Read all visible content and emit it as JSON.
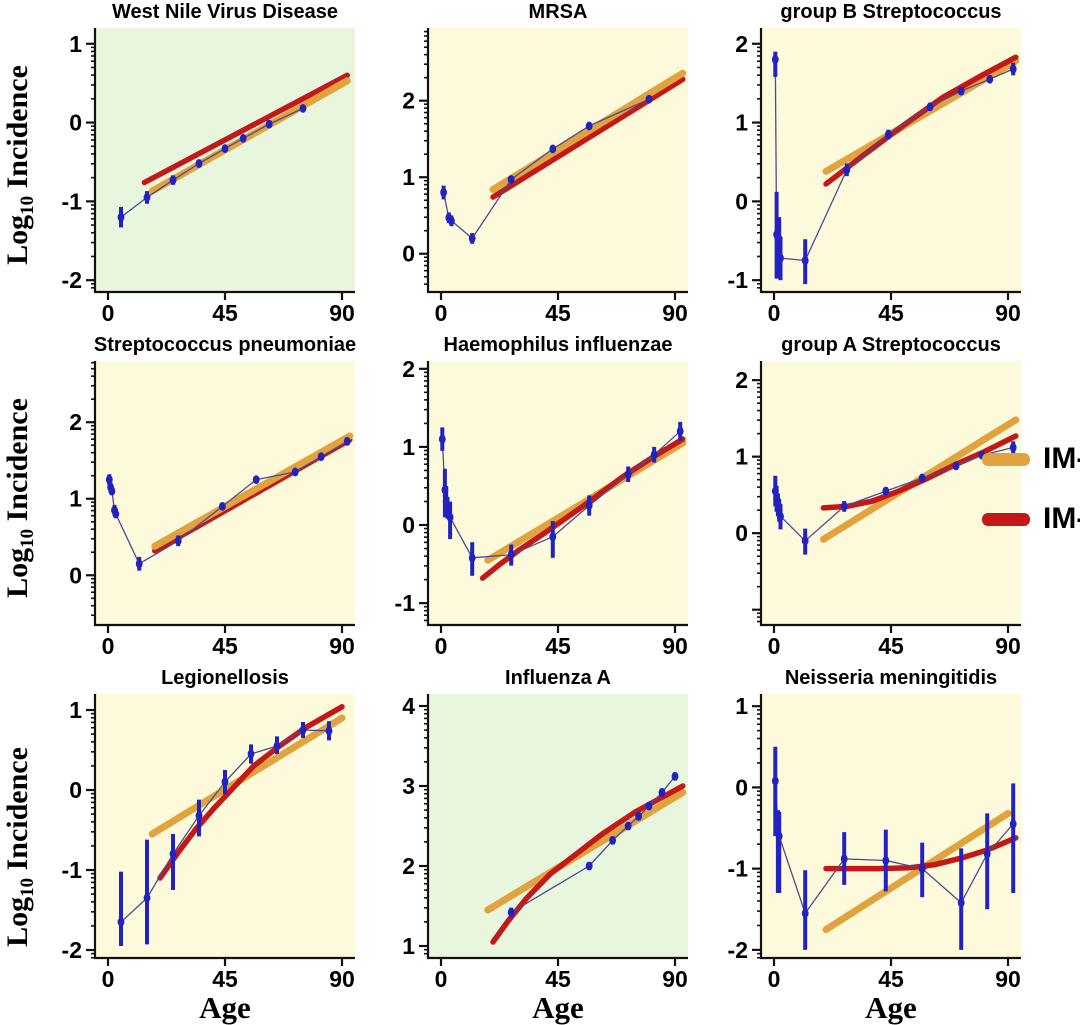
{
  "figure": {
    "y_axis_label": {
      "prefix": "Log",
      "sub": "10",
      "rest": "Incidence"
    },
    "x_axis_label": "Age",
    "legend": {
      "items": [
        {
          "label": "IM-I",
          "color": "#E0A33E"
        },
        {
          "label": "IM-II",
          "color": "#C41818"
        }
      ]
    },
    "colors": {
      "im1": "#E0A33E",
      "im2": "#C41818",
      "data_marker": "#2222C0",
      "data_line": "#4A4A99",
      "bg_yellow": "#FDFADB",
      "bg_green": "#E7F6DC",
      "axis": "#111111"
    }
  },
  "chart_data": [
    {
      "type": "scatter",
      "title": "West Nile Virus Disease",
      "bg": "green",
      "xlim": [
        -5,
        95
      ],
      "xticks": [
        0,
        45,
        90
      ],
      "ylim": [
        -2.15,
        1.2
      ],
      "yticks": [
        1,
        0,
        -1,
        -2
      ],
      "red_on_top": false,
      "points": [
        {
          "x": 5,
          "y": -1.2,
          "lo": -1.33,
          "hi": -1.07
        },
        {
          "x": 15,
          "y": -0.95,
          "lo": -1.03,
          "hi": -0.87
        },
        {
          "x": 25,
          "y": -0.73,
          "lo": -0.79,
          "hi": -0.67
        },
        {
          "x": 35,
          "y": -0.52,
          "lo": -0.57,
          "hi": -0.47
        },
        {
          "x": 45,
          "y": -0.33,
          "lo": -0.37,
          "hi": -0.29
        },
        {
          "x": 52,
          "y": -0.2,
          "lo": -0.24,
          "hi": -0.16
        },
        {
          "x": 62,
          "y": -0.02,
          "lo": -0.05,
          "hi": 0.01
        },
        {
          "x": 75,
          "y": 0.18,
          "lo": 0.15,
          "hi": 0.21
        }
      ],
      "im1": [
        [
          17,
          -0.87
        ],
        [
          92,
          0.53
        ]
      ],
      "im2": [
        [
          14,
          -0.76
        ],
        [
          92,
          0.6
        ]
      ]
    },
    {
      "type": "scatter",
      "title": "MRSA",
      "bg": "yellow",
      "xlim": [
        -5,
        95
      ],
      "xticks": [
        0,
        45,
        90
      ],
      "ylim": [
        -0.5,
        2.95
      ],
      "yticks": [
        2,
        1,
        0
      ],
      "red_on_top": false,
      "points": [
        {
          "x": 1,
          "y": 0.8,
          "lo": 0.71,
          "hi": 0.89
        },
        {
          "x": 3,
          "y": 0.47,
          "lo": 0.4,
          "hi": 0.54
        },
        {
          "x": 4,
          "y": 0.43,
          "lo": 0.36,
          "hi": 0.5
        },
        {
          "x": 12,
          "y": 0.2,
          "lo": 0.13,
          "hi": 0.27
        },
        {
          "x": 27,
          "y": 0.97,
          "lo": 0.93,
          "hi": 1.01
        },
        {
          "x": 43,
          "y": 1.37,
          "lo": 1.34,
          "hi": 1.4
        },
        {
          "x": 57,
          "y": 1.67,
          "lo": 1.64,
          "hi": 1.7
        },
        {
          "x": 80,
          "y": 2.02,
          "lo": 1.99,
          "hi": 2.05
        }
      ],
      "im1": [
        [
          20,
          0.84
        ],
        [
          93,
          2.36
        ]
      ],
      "im2": [
        [
          20,
          0.74
        ],
        [
          93,
          2.28
        ]
      ]
    },
    {
      "type": "scatter",
      "title": "group B Streptococcus",
      "bg": "yellow",
      "xlim": [
        -5,
        95
      ],
      "xticks": [
        0,
        45,
        90
      ],
      "ylim": [
        -1.15,
        2.2
      ],
      "yticks": [
        2,
        1,
        0,
        -1
      ],
      "red_on_top": true,
      "points": [
        {
          "x": 0.5,
          "y": 1.8,
          "lo": 1.58,
          "hi": 1.9
        },
        {
          "x": 1,
          "y": -0.42,
          "lo": -0.98,
          "hi": 0.12
        },
        {
          "x": 2,
          "y": -0.48,
          "lo": -0.78,
          "hi": -0.2
        },
        {
          "x": 2.5,
          "y": -0.72,
          "lo": -1.0,
          "hi": -0.45
        },
        {
          "x": 12,
          "y": -0.75,
          "lo": -1.05,
          "hi": -0.48
        },
        {
          "x": 28,
          "y": 0.4,
          "lo": 0.32,
          "hi": 0.48
        },
        {
          "x": 44,
          "y": 0.85,
          "lo": 0.79,
          "hi": 0.91
        },
        {
          "x": 60,
          "y": 1.2,
          "lo": 1.15,
          "hi": 1.25
        },
        {
          "x": 72,
          "y": 1.4,
          "lo": 1.35,
          "hi": 1.45
        },
        {
          "x": 83,
          "y": 1.55,
          "lo": 1.5,
          "hi": 1.6
        },
        {
          "x": 92,
          "y": 1.68,
          "lo": 1.6,
          "hi": 1.76
        }
      ],
      "im1": [
        [
          20,
          0.38
        ],
        [
          93,
          1.78
        ]
      ],
      "im2": [
        [
          20,
          0.22
        ],
        [
          35,
          0.6
        ],
        [
          50,
          0.97
        ],
        [
          65,
          1.32
        ],
        [
          80,
          1.6
        ],
        [
          93,
          1.83
        ]
      ]
    },
    {
      "type": "scatter",
      "title": "Streptococcus pneumoniae",
      "bg": "yellow",
      "xlim": [
        -5,
        95
      ],
      "xticks": [
        0,
        45,
        90
      ],
      "ylim": [
        -0.65,
        2.8
      ],
      "yticks": [
        2,
        1,
        0
      ],
      "red_on_top": false,
      "points": [
        {
          "x": 0.5,
          "y": 1.25,
          "lo": 1.18,
          "hi": 1.32
        },
        {
          "x": 1,
          "y": 1.15,
          "lo": 1.09,
          "hi": 1.21
        },
        {
          "x": 1.5,
          "y": 1.1,
          "lo": 1.05,
          "hi": 1.15
        },
        {
          "x": 2.5,
          "y": 0.85,
          "lo": 0.78,
          "hi": 0.92
        },
        {
          "x": 3,
          "y": 0.8,
          "lo": 0.75,
          "hi": 0.85
        },
        {
          "x": 12,
          "y": 0.15,
          "lo": 0.06,
          "hi": 0.24
        },
        {
          "x": 27,
          "y": 0.45,
          "lo": 0.38,
          "hi": 0.52
        },
        {
          "x": 44,
          "y": 0.9,
          "lo": 0.86,
          "hi": 0.94
        },
        {
          "x": 57,
          "y": 1.25,
          "lo": 1.22,
          "hi": 1.28
        },
        {
          "x": 72,
          "y": 1.35,
          "lo": 1.32,
          "hi": 1.38
        },
        {
          "x": 82,
          "y": 1.55,
          "lo": 1.52,
          "hi": 1.58
        },
        {
          "x": 92,
          "y": 1.75,
          "lo": 1.7,
          "hi": 1.8
        }
      ],
      "im1": [
        [
          18,
          0.38
        ],
        [
          93,
          1.82
        ]
      ],
      "im2": [
        [
          18,
          0.32
        ],
        [
          93,
          1.77
        ]
      ]
    },
    {
      "type": "scatter",
      "title": "Haemophilus influenzae",
      "bg": "yellow",
      "xlim": [
        -5,
        95
      ],
      "xticks": [
        0,
        45,
        90
      ],
      "ylim": [
        -1.28,
        2.1
      ],
      "yticks": [
        2,
        1,
        0,
        -1
      ],
      "red_on_top": true,
      "points": [
        {
          "x": 0.5,
          "y": 1.1,
          "lo": 0.95,
          "hi": 1.25
        },
        {
          "x": 1.5,
          "y": 0.45,
          "lo": 0.1,
          "hi": 0.72
        },
        {
          "x": 2,
          "y": 0.3,
          "lo": 0.1,
          "hi": 0.5
        },
        {
          "x": 2.5,
          "y": 0.22,
          "lo": 0.08,
          "hi": 0.36
        },
        {
          "x": 3.5,
          "y": 0.1,
          "lo": -0.18,
          "hi": 0.3
        },
        {
          "x": 12,
          "y": -0.42,
          "lo": -0.65,
          "hi": -0.22
        },
        {
          "x": 27,
          "y": -0.38,
          "lo": -0.52,
          "hi": -0.25
        },
        {
          "x": 43,
          "y": -0.15,
          "lo": -0.42,
          "hi": 0.05
        },
        {
          "x": 57,
          "y": 0.25,
          "lo": 0.12,
          "hi": 0.38
        },
        {
          "x": 72,
          "y": 0.65,
          "lo": 0.55,
          "hi": 0.75
        },
        {
          "x": 82,
          "y": 0.9,
          "lo": 0.8,
          "hi": 1.0
        },
        {
          "x": 92,
          "y": 1.2,
          "lo": 1.08,
          "hi": 1.32
        }
      ],
      "im1": [
        [
          18,
          -0.45
        ],
        [
          93,
          1.05
        ]
      ],
      "im2": [
        [
          16,
          -0.68
        ],
        [
          22,
          -0.52
        ],
        [
          30,
          -0.32
        ],
        [
          40,
          -0.1
        ],
        [
          55,
          0.25
        ],
        [
          70,
          0.62
        ],
        [
          82,
          0.88
        ],
        [
          93,
          1.1
        ]
      ]
    },
    {
      "type": "scatter",
      "title": "group A Streptococcus",
      "bg": "yellow",
      "xlim": [
        -5,
        95
      ],
      "xticks": [
        0,
        45,
        90
      ],
      "ylim": [
        -1.2,
        2.25
      ],
      "yticks": [
        2,
        1,
        0
      ],
      "red_on_top": true,
      "points": [
        {
          "x": 0.5,
          "y": 0.55,
          "lo": 0.35,
          "hi": 0.75
        },
        {
          "x": 1,
          "y": 0.45,
          "lo": 0.28,
          "hi": 0.62
        },
        {
          "x": 1.5,
          "y": 0.38,
          "lo": 0.22,
          "hi": 0.52
        },
        {
          "x": 2,
          "y": 0.3,
          "lo": 0.15,
          "hi": 0.45
        },
        {
          "x": 2.5,
          "y": 0.22,
          "lo": 0.05,
          "hi": 0.38
        },
        {
          "x": 12,
          "y": -0.1,
          "lo": -0.28,
          "hi": 0.06
        },
        {
          "x": 27,
          "y": 0.35,
          "lo": 0.28,
          "hi": 0.42
        },
        {
          "x": 43,
          "y": 0.55,
          "lo": 0.5,
          "hi": 0.6
        },
        {
          "x": 57,
          "y": 0.72,
          "lo": 0.67,
          "hi": 0.77
        },
        {
          "x": 70,
          "y": 0.88,
          "lo": 0.83,
          "hi": 0.93
        },
        {
          "x": 80,
          "y": 1.02,
          "lo": 0.97,
          "hi": 1.07
        },
        {
          "x": 92,
          "y": 1.12,
          "lo": 1.04,
          "hi": 1.2
        }
      ],
      "im1": [
        [
          19,
          -0.08
        ],
        [
          93,
          1.48
        ]
      ],
      "im2": [
        [
          19,
          0.33
        ],
        [
          28,
          0.35
        ],
        [
          38,
          0.42
        ],
        [
          48,
          0.55
        ],
        [
          58,
          0.7
        ],
        [
          70,
          0.9
        ],
        [
          80,
          1.05
        ],
        [
          93,
          1.27
        ]
      ]
    },
    {
      "type": "scatter",
      "title": "Legionellosis",
      "bg": "yellow",
      "xlim": [
        -5,
        95
      ],
      "xticks": [
        0,
        45,
        90
      ],
      "ylim": [
        -2.1,
        1.2
      ],
      "yticks": [
        1,
        0,
        -1,
        -2
      ],
      "red_on_top": true,
      "points": [
        {
          "x": 5,
          "y": -1.65,
          "lo": -1.95,
          "hi": -1.02
        },
        {
          "x": 15,
          "y": -1.35,
          "lo": -1.93,
          "hi": -0.62
        },
        {
          "x": 25,
          "y": -0.8,
          "lo": -1.25,
          "hi": -0.55
        },
        {
          "x": 35,
          "y": -0.32,
          "lo": -0.58,
          "hi": -0.12
        },
        {
          "x": 45,
          "y": 0.1,
          "lo": -0.05,
          "hi": 0.25
        },
        {
          "x": 55,
          "y": 0.45,
          "lo": 0.33,
          "hi": 0.57
        },
        {
          "x": 65,
          "y": 0.55,
          "lo": 0.45,
          "hi": 0.67
        },
        {
          "x": 75,
          "y": 0.75,
          "lo": 0.65,
          "hi": 0.85
        },
        {
          "x": 85,
          "y": 0.74,
          "lo": 0.62,
          "hi": 0.86
        }
      ],
      "im1": [
        [
          17,
          -0.55
        ],
        [
          90,
          0.9
        ]
      ],
      "im2": [
        [
          20,
          -1.1
        ],
        [
          27,
          -0.78
        ],
        [
          34,
          -0.48
        ],
        [
          41,
          -0.22
        ],
        [
          48,
          0.02
        ],
        [
          56,
          0.3
        ],
        [
          66,
          0.55
        ],
        [
          76,
          0.78
        ],
        [
          90,
          1.04
        ]
      ]
    },
    {
      "type": "scatter",
      "title": "Influenza A",
      "bg": "green",
      "xlim": [
        -5,
        95
      ],
      "xticks": [
        0,
        45,
        90
      ],
      "ylim": [
        0.85,
        4.15
      ],
      "yticks": [
        4,
        3,
        2,
        1
      ],
      "red_on_top": true,
      "points": [
        {
          "x": 27,
          "y": 1.42,
          "lo": 1.36,
          "hi": 1.48
        },
        {
          "x": 57,
          "y": 2.0,
          "lo": 1.95,
          "hi": 2.05
        },
        {
          "x": 66,
          "y": 2.32,
          "lo": 2.27,
          "hi": 2.37
        },
        {
          "x": 72,
          "y": 2.5,
          "lo": 2.45,
          "hi": 2.55
        },
        {
          "x": 76,
          "y": 2.62,
          "lo": 2.57,
          "hi": 2.67
        },
        {
          "x": 80,
          "y": 2.75,
          "lo": 2.7,
          "hi": 2.8
        },
        {
          "x": 85,
          "y": 2.92,
          "lo": 2.87,
          "hi": 2.97
        },
        {
          "x": 90,
          "y": 3.12,
          "lo": 3.07,
          "hi": 3.17
        }
      ],
      "im1": [
        [
          18,
          1.45
        ],
        [
          93,
          2.92
        ]
      ],
      "im2": [
        [
          20,
          1.05
        ],
        [
          26,
          1.32
        ],
        [
          33,
          1.6
        ],
        [
          42,
          1.9
        ],
        [
          52,
          2.15
        ],
        [
          62,
          2.4
        ],
        [
          75,
          2.68
        ],
        [
          93,
          3.0
        ]
      ]
    },
    {
      "type": "scatter",
      "title": "Neisseria meningitidis",
      "bg": "yellow",
      "xlim": [
        -5,
        95
      ],
      "xticks": [
        0,
        45,
        90
      ],
      "ylim": [
        -2.1,
        1.15
      ],
      "yticks": [
        1,
        0,
        -1,
        -2
      ],
      "red_on_top": true,
      "points": [
        {
          "x": 0.5,
          "y": 0.08,
          "lo": -0.6,
          "hi": 0.5
        },
        {
          "x": 1.5,
          "y": -0.45,
          "lo": -1.3,
          "hi": -0.28
        },
        {
          "x": 2,
          "y": -0.6,
          "lo": -1.3,
          "hi": -0.3
        },
        {
          "x": 12,
          "y": -1.55,
          "lo": -2.0,
          "hi": -1.02
        },
        {
          "x": 27,
          "y": -0.88,
          "lo": -1.2,
          "hi": -0.55
        },
        {
          "x": 43,
          "y": -0.9,
          "lo": -1.28,
          "hi": -0.52
        },
        {
          "x": 57,
          "y": -1.0,
          "lo": -1.35,
          "hi": -0.68
        },
        {
          "x": 72,
          "y": -1.42,
          "lo": -2.0,
          "hi": -0.75
        },
        {
          "x": 82,
          "y": -0.82,
          "lo": -1.5,
          "hi": -0.32
        },
        {
          "x": 92,
          "y": -0.45,
          "lo": -1.3,
          "hi": 0.05
        }
      ],
      "im1": [
        [
          20,
          -1.75
        ],
        [
          90,
          -0.32
        ]
      ],
      "im2": [
        [
          20,
          -1.0
        ],
        [
          40,
          -1.0
        ],
        [
          52,
          -0.99
        ],
        [
          62,
          -0.95
        ],
        [
          72,
          -0.87
        ],
        [
          82,
          -0.77
        ],
        [
          93,
          -0.62
        ]
      ]
    }
  ]
}
